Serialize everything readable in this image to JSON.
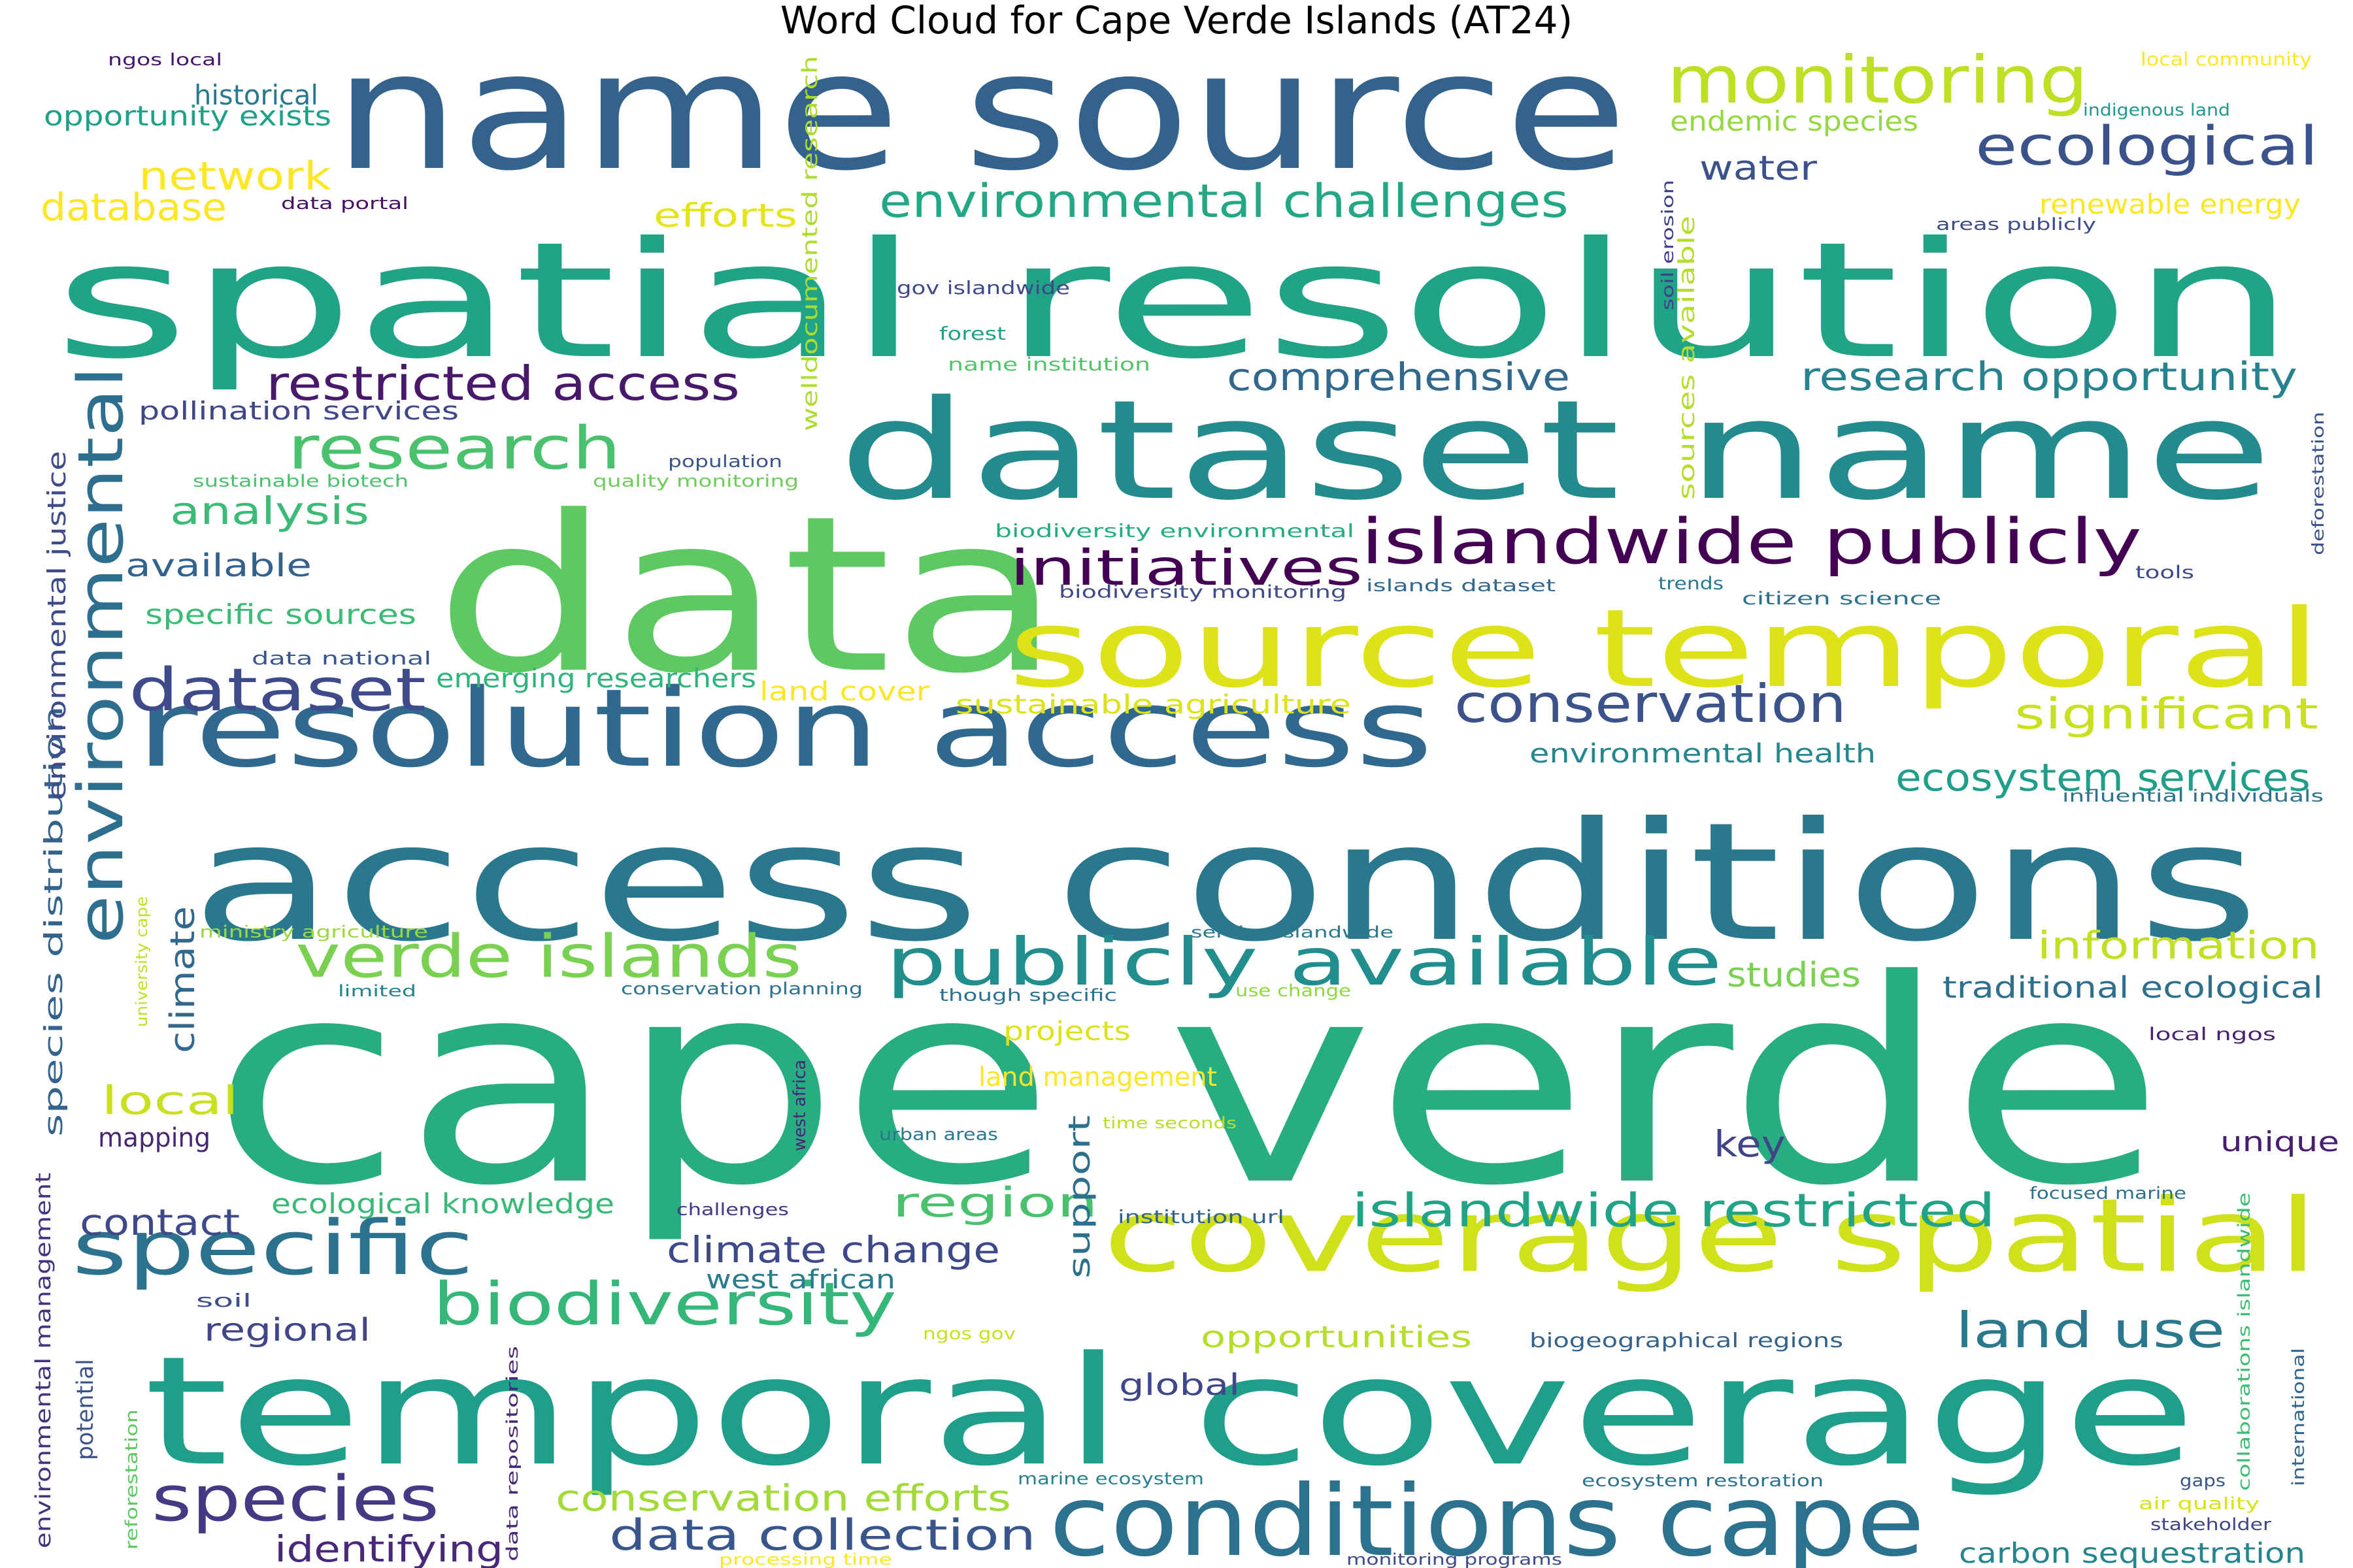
{
  "title": "Word Cloud for Cape Verde Islands (AT24)",
  "words": [
    {
      "text": "cape verde",
      "color": "#27ad81"
    },
    {
      "text": "name source",
      "color": "#33638d"
    },
    {
      "text": "spatial resolution",
      "color": "#20a386"
    },
    {
      "text": "dataset name",
      "color": "#238a8d"
    },
    {
      "text": "data",
      "color": "#5ec962"
    },
    {
      "text": "access conditions",
      "color": "#2a788e"
    },
    {
      "text": "temporal coverage",
      "color": "#1f9e89"
    },
    {
      "text": "resolution access",
      "color": "#31688e"
    },
    {
      "text": "source temporal",
      "color": "#dde318"
    },
    {
      "text": "coverage spatial",
      "color": "#d0e11c"
    },
    {
      "text": "conditions cape",
      "color": "#2c728e"
    },
    {
      "text": "islandwide publicly",
      "color": "#440154"
    },
    {
      "text": "publicly available",
      "color": "#228d8d"
    },
    {
      "text": "monitoring",
      "color": "#bddf26"
    },
    {
      "text": "ecological",
      "color": "#3b528b"
    },
    {
      "text": "environmental challenges",
      "color": "#22a884"
    },
    {
      "text": "restricted access",
      "color": "#48186a"
    },
    {
      "text": "research",
      "color": "#4ac16d"
    },
    {
      "text": "environmental",
      "color": "#2e6e8e"
    },
    {
      "text": "dataset",
      "color": "#3e4a89"
    },
    {
      "text": "conservation",
      "color": "#3b528b"
    },
    {
      "text": "initiatives",
      "color": "#440154"
    },
    {
      "text": "specific",
      "color": "#2c728e"
    },
    {
      "text": "biodiversity",
      "color": "#35b779"
    },
    {
      "text": "species",
      "color": "#443a83"
    },
    {
      "text": "verde islands",
      "color": "#7ad151"
    },
    {
      "text": "islandwide restricted",
      "color": "#20a386"
    },
    {
      "text": "comprehensive",
      "color": "#31688e"
    },
    {
      "text": "research opportunity",
      "color": "#26828e"
    },
    {
      "text": "significant",
      "color": "#c8e020"
    },
    {
      "text": "ecosystem services",
      "color": "#1f9e89"
    },
    {
      "text": "information",
      "color": "#c2df23"
    },
    {
      "text": "traditional ecological",
      "color": "#2d708e"
    },
    {
      "text": "land use",
      "color": "#2a788e"
    },
    {
      "text": "data collection",
      "color": "#39568c"
    },
    {
      "text": "carbon sequestration",
      "color": "#25858e"
    },
    {
      "text": "identifying",
      "color": "#482878"
    },
    {
      "text": "conservation efforts",
      "color": "#a2da37"
    },
    {
      "text": "climate change",
      "color": "#3e4989"
    },
    {
      "text": "region",
      "color": "#4ac16d"
    },
    {
      "text": "studies",
      "color": "#7ad151"
    },
    {
      "text": "local",
      "color": "#c8e020"
    },
    {
      "text": "analysis",
      "color": "#3bbb75"
    },
    {
      "text": "network",
      "color": "#fde725"
    },
    {
      "text": "historical",
      "color": "#29798e"
    },
    {
      "text": "opportunity exists",
      "color": "#1fa188"
    },
    {
      "text": "database",
      "color": "#fde725"
    },
    {
      "text": "efforts",
      "color": "#e5e419"
    },
    {
      "text": "water",
      "color": "#3b528b"
    },
    {
      "text": "endemic species",
      "color": "#95d840"
    },
    {
      "text": "renewable energy",
      "color": "#fde725"
    },
    {
      "text": "contact",
      "color": "#3e4989"
    },
    {
      "text": "mapping",
      "color": "#482677"
    },
    {
      "text": "key",
      "color": "#414487"
    },
    {
      "text": "unique",
      "color": "#481f70"
    },
    {
      "text": "regional",
      "color": "#404688"
    },
    {
      "text": "global",
      "color": "#3f4788"
    },
    {
      "text": "opportunities",
      "color": "#b5de2b"
    },
    {
      "text": "support",
      "color": "#2d708e"
    },
    {
      "text": "climate",
      "color": "#31688e"
    },
    {
      "text": "available",
      "color": "#33638d"
    },
    {
      "text": "specific sources",
      "color": "#3bbb75"
    },
    {
      "text": "emerging researchers",
      "color": "#2fb47c"
    },
    {
      "text": "land cover",
      "color": "#fde725"
    },
    {
      "text": "sustainable agriculture",
      "color": "#dde318"
    },
    {
      "text": "environmental health",
      "color": "#24868e"
    },
    {
      "text": "ecological knowledge",
      "color": "#38b977"
    },
    {
      "text": "west african",
      "color": "#287c8e"
    },
    {
      "text": "projects",
      "color": "#dde318"
    },
    {
      "text": "land management",
      "color": "#fde725"
    },
    {
      "text": "pollination services",
      "color": "#3f4788"
    },
    {
      "text": "species distribution",
      "color": "#33638d"
    },
    {
      "text": "environmental justice",
      "color": "#3e4a89"
    },
    {
      "text": "environmental management",
      "color": "#46337e"
    },
    {
      "text": "welldocumented research",
      "color": "#addc30"
    },
    {
      "text": "sources available",
      "color": "#b5de2b"
    },
    {
      "text": "data portal",
      "color": "#471063"
    },
    {
      "text": "ngos local",
      "color": "#481668"
    },
    {
      "text": "local community",
      "color": "#fde725"
    },
    {
      "text": "indigenous land",
      "color": "#1f9a8a"
    },
    {
      "text": "areas publicly",
      "color": "#3e4c8a"
    },
    {
      "text": "soil erosion",
      "color": "#424086"
    },
    {
      "text": "gov islandwide",
      "color": "#3e4989"
    },
    {
      "text": "forest",
      "color": "#1fa088"
    },
    {
      "text": "name institution",
      "color": "#52c569"
    },
    {
      "text": "population",
      "color": "#39568c"
    },
    {
      "text": "sustainable biotech",
      "color": "#4ac16d"
    },
    {
      "text": "quality monitoring",
      "color": "#6ccd5a"
    },
    {
      "text": "biodiversity environmental",
      "color": "#25ac82"
    },
    {
      "text": "biodiversity monitoring",
      "color": "#3e4a89"
    },
    {
      "text": "islands dataset",
      "color": "#31688e"
    },
    {
      "text": "trends",
      "color": "#2a778e"
    },
    {
      "text": "citizen science",
      "color": "#2c728e"
    },
    {
      "text": "tools",
      "color": "#3e4989"
    },
    {
      "text": "deforestation",
      "color": "#3b528b"
    },
    {
      "text": "data national",
      "color": "#3a548c"
    },
    {
      "text": "influential individuals",
      "color": "#2c738e"
    },
    {
      "text": "university cape",
      "color": "#c2df23"
    },
    {
      "text": "ministry agriculture",
      "color": "#9bd93c"
    },
    {
      "text": "limited",
      "color": "#25848e"
    },
    {
      "text": "conservation planning",
      "color": "#2c728e"
    },
    {
      "text": "though specific",
      "color": "#2c728e"
    },
    {
      "text": "service islandwide",
      "color": "#2a778e"
    },
    {
      "text": "use change",
      "color": "#8fd744"
    },
    {
      "text": "local ngos",
      "color": "#482173"
    },
    {
      "text": "west africa",
      "color": "#482475"
    },
    {
      "text": "urban areas",
      "color": "#2a788e"
    },
    {
      "text": "time seconds",
      "color": "#b8de29"
    },
    {
      "text": "challenges",
      "color": "#453781"
    },
    {
      "text": "institution url",
      "color": "#33638d"
    },
    {
      "text": "focused marine",
      "color": "#2c728e"
    },
    {
      "text": "collaborations islandwide",
      "color": "#3fbc73"
    },
    {
      "text": "international",
      "color": "#32648e"
    },
    {
      "text": "soil",
      "color": "#3d4e8a"
    },
    {
      "text": "ngos gov",
      "color": "#c8e020"
    },
    {
      "text": "biogeographical regions",
      "color": "#33638d"
    },
    {
      "text": "potential",
      "color": "#3b528b"
    },
    {
      "text": "reforestation",
      "color": "#5ec962"
    },
    {
      "text": "data repositories",
      "color": "#482878"
    },
    {
      "text": "marine ecosystem",
      "color": "#26828e"
    },
    {
      "text": "ecosystem restoration",
      "color": "#2c728e"
    },
    {
      "text": "gaps",
      "color": "#39568c"
    },
    {
      "text": "air quality",
      "color": "#d8e219"
    },
    {
      "text": "stakeholder",
      "color": "#404588"
    },
    {
      "text": "processing time",
      "color": "#fde725"
    },
    {
      "text": "monitoring programs",
      "color": "#3e4a89"
    }
  ]
}
